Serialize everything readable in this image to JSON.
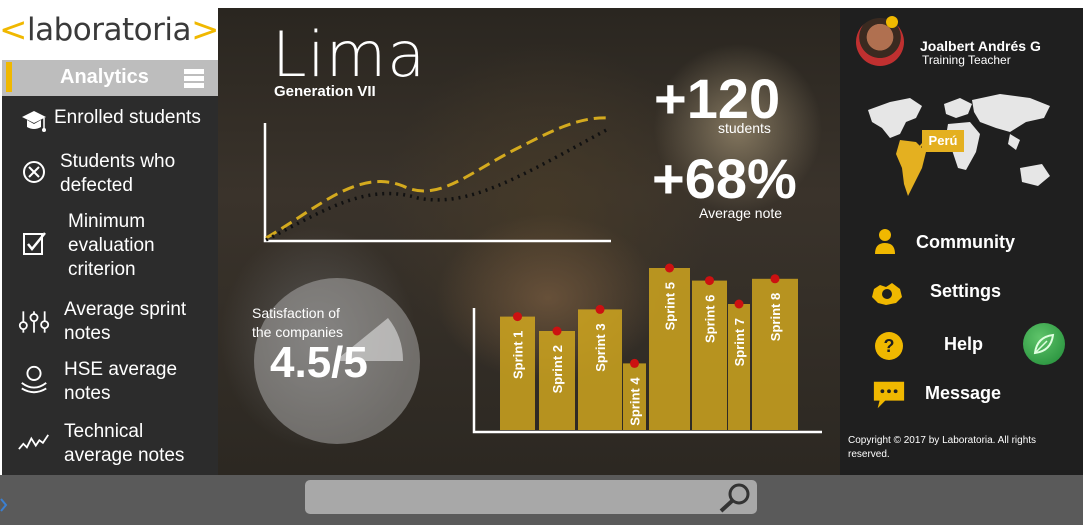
{
  "brand": {
    "name": "laboratoria",
    "open_bracket": "<",
    "close_bracket": ">"
  },
  "sidebar": {
    "header_label": "Analytics",
    "items": [
      {
        "label_lines": [
          "Enrolled students"
        ],
        "icon": "graduation-cap-icon"
      },
      {
        "label_lines": [
          "Students who",
          "defected"
        ],
        "icon": "circle-x-icon"
      },
      {
        "label_lines": [
          "Minimum",
          "evaluation",
          "criterion"
        ],
        "icon": "checklist-icon"
      },
      {
        "label_lines": [
          "Average sprint",
          "notes"
        ],
        "icon": "sliders-icon"
      },
      {
        "label_lines": [
          "HSE average",
          "notes"
        ],
        "icon": "user-hands-icon"
      },
      {
        "label_lines": [
          "Technical",
          "average notes"
        ],
        "icon": "trend-line-icon"
      }
    ]
  },
  "hero": {
    "city": "Lima",
    "generation": "Generation VII",
    "students_value": "+120",
    "students_label": "students",
    "average_value": "+68%",
    "average_label": "Average note",
    "satisfaction_label_lines": [
      "Satisfaction of",
      "the companies"
    ],
    "satisfaction_value": "4.5/5",
    "satisfaction_score": 4.5,
    "satisfaction_max": 5
  },
  "chart_data": {
    "type": "bar",
    "categories": [
      "Sprint 1",
      "Sprint 2",
      "Sprint 3",
      "Sprint 4",
      "Sprint 5",
      "Sprint 6",
      "Sprint 7",
      "Sprint 8"
    ],
    "values": [
      63,
      55,
      67,
      37,
      90,
      83,
      70,
      84
    ],
    "ylim": [
      0,
      100
    ],
    "bar_color": "#d4aa1e",
    "marker_color": "#cc1111"
  },
  "user": {
    "name": "Joalbert Andrés G",
    "role": "Training Teacher"
  },
  "map": {
    "country_label": "Perú",
    "highlight_color": "#e4b020"
  },
  "menu": {
    "community": "Community",
    "settings": "Settings",
    "help": "Help",
    "message": "Message"
  },
  "copyright": "Copyright © 2017 by Laboratoria. All rights reserved.",
  "search": {
    "placeholder": ""
  },
  "colors": {
    "accent": "#f0b800",
    "sidebar": "#2c2c2c",
    "right_panel": "#1f1f1f",
    "bottom_bar": "#5a5a5a"
  }
}
